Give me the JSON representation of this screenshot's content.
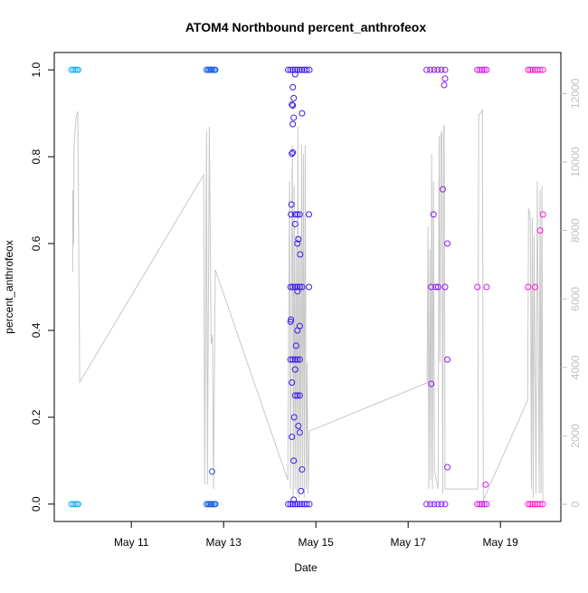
{
  "chart_data": {
    "type": "scatter",
    "title": "ATOM4 Northbound percent_anthrofeox",
    "xlabel": "Date",
    "ylabel": "percent_anthrofeox",
    "xlim": [
      9.33,
      20.31
    ],
    "xticks": [
      {
        "value": 11,
        "label": "May 11"
      },
      {
        "value": 13,
        "label": "May 13"
      },
      {
        "value": 15,
        "label": "May 15"
      },
      {
        "value": 17,
        "label": "May 17"
      },
      {
        "value": 19,
        "label": "May 19"
      }
    ],
    "ylim": [
      -0.04,
      1.04
    ],
    "yticks": [
      {
        "value": 0,
        "label": "0.0"
      },
      0.2,
      0.4,
      0.6,
      0.8,
      {
        "value": 1,
        "label": "1.0"
      }
    ],
    "y2lim": [
      -500,
      13200
    ],
    "y2ticks": [
      0,
      2000,
      4000,
      6000,
      8000,
      10000,
      12000
    ],
    "y2color": "#c0c0c0",
    "series": [
      {
        "color": "#1eb4f0",
        "x": [
          9.7,
          9.74,
          9.78,
          9.82,
          9.85,
          9.7,
          9.74,
          9.78,
          9.82,
          9.85
        ],
        "values": [
          1,
          1,
          1,
          1,
          1,
          0,
          0,
          0,
          0,
          0
        ]
      },
      {
        "color": "#1a5fe0",
        "x": [
          12.63,
          12.67,
          12.7,
          12.73,
          12.76,
          12.8,
          12.82,
          12.63,
          12.67,
          12.7,
          12.73,
          12.76,
          12.8,
          12.82,
          12.75
        ],
        "values": [
          1,
          1,
          1,
          1,
          1,
          1,
          1,
          0,
          0,
          0,
          0,
          0,
          0,
          0,
          0.075
        ]
      },
      {
        "color": "#3b1cf0",
        "x": [
          14.4,
          14.45,
          14.5,
          14.55,
          14.6,
          14.65,
          14.7,
          14.75,
          14.8,
          14.86,
          14.4,
          14.45,
          14.5,
          14.55,
          14.6,
          14.65,
          14.7,
          14.75,
          14.8,
          14.86,
          14.5,
          14.55,
          14.52,
          14.48,
          14.5,
          14.52,
          14.5,
          14.7,
          14.5,
          14.48,
          14.47,
          14.46,
          14.55,
          14.6,
          14.65,
          14.85,
          14.55,
          14.62,
          14.6,
          14.66,
          14.45,
          14.5,
          14.55,
          14.6,
          14.65,
          14.7,
          14.85,
          14.6,
          14.46,
          14.45,
          14.65,
          14.6,
          14.57,
          14.45,
          14.5,
          14.55,
          14.6,
          14.65,
          14.55,
          14.48,
          14.55,
          14.6,
          14.65,
          14.53,
          14.62,
          14.65,
          14.48,
          14.52,
          14.7,
          14.68,
          14.52
        ],
        "values": [
          1,
          1,
          1,
          1,
          1,
          1,
          1,
          1,
          1,
          1,
          0,
          0,
          0,
          0,
          0,
          0,
          0,
          0,
          0,
          0,
          0.96,
          0.99,
          0.935,
          0.92,
          0.918,
          0.89,
          0.875,
          0.9,
          0.81,
          0.807,
          0.69,
          0.667,
          0.667,
          0.667,
          0.667,
          0.667,
          0.645,
          0.61,
          0.6,
          0.575,
          0.5,
          0.5,
          0.5,
          0.5,
          0.5,
          0.5,
          0.5,
          0.49,
          0.425,
          0.42,
          0.41,
          0.4,
          0.365,
          0.333,
          0.333,
          0.333,
          0.333,
          0.333,
          0.31,
          0.28,
          0.25,
          0.25,
          0.25,
          0.2,
          0.18,
          0.165,
          0.155,
          0.1,
          0.08,
          0.03,
          0.01
        ]
      },
      {
        "color": "#8a1cf0",
        "x": [
          17.4,
          17.48,
          17.56,
          17.64,
          17.72,
          17.8,
          17.4,
          17.48,
          17.56,
          17.64,
          17.72,
          17.8,
          17.5,
          17.55,
          17.5,
          17.6,
          17.65,
          17.8,
          17.75,
          17.85,
          17.85,
          17.85,
          17.8,
          17.78
        ],
        "values": [
          1,
          1,
          1,
          1,
          1,
          1,
          0,
          0,
          0,
          0,
          0,
          0,
          0.277,
          0.667,
          0.5,
          0.5,
          0.5,
          0.5,
          0.725,
          0.6,
          0.333,
          0.085,
          0.98,
          0.965
        ]
      },
      {
        "color": "#d21cf0",
        "x": [
          18.5,
          18.55,
          18.6,
          18.65,
          18.7,
          18.5,
          18.55,
          18.6,
          18.65,
          18.7,
          18.5,
          18.7,
          18.68
        ],
        "values": [
          1,
          1,
          1,
          1,
          1,
          0,
          0,
          0,
          0,
          0,
          0.5,
          0.5,
          0.045
        ]
      },
      {
        "color": "#ff1acc",
        "x": [
          19.6,
          19.65,
          19.7,
          19.75,
          19.8,
          19.86,
          19.92,
          19.6,
          19.65,
          19.7,
          19.75,
          19.8,
          19.86,
          19.92,
          19.6,
          19.75,
          19.86,
          19.92
        ],
        "values": [
          1,
          1,
          1,
          1,
          1,
          1,
          1,
          0,
          0,
          0,
          0,
          0,
          0,
          0,
          0.5,
          0.5,
          0.63,
          0.667
        ]
      },
      {
        "type": "line",
        "axis": "y2",
        "color": "#c8c8c8",
        "x": [
          9.73,
          9.73,
          9.75,
          9.76,
          9.8,
          9.84,
          9.88,
          12.57,
          12.59,
          12.63,
          12.65,
          12.69,
          12.73,
          12.76,
          12.78,
          12.82,
          14.39,
          14.43,
          14.45,
          14.47,
          14.49,
          14.51,
          14.53,
          14.55,
          14.57,
          14.59,
          14.61,
          14.63,
          14.65,
          14.67,
          14.69,
          14.71,
          14.73,
          14.75,
          14.77,
          14.79,
          14.81,
          14.83,
          14.86,
          17.41,
          17.43,
          17.45,
          17.47,
          17.49,
          17.51,
          17.53,
          17.55,
          17.57,
          17.65,
          17.67,
          17.69,
          17.71,
          17.73,
          17.75,
          17.77,
          17.78,
          17.8,
          17.82,
          18.51,
          18.53,
          18.57,
          18.61,
          18.63,
          18.65,
          19.59,
          19.61,
          19.63,
          19.65,
          19.67,
          19.69,
          19.71,
          19.73,
          19.77,
          19.8,
          19.84,
          19.86,
          19.88,
          19.9,
          19.92
        ],
        "values": [
          6800,
          9180,
          7590,
          10500,
          11300,
          11480,
          3570,
          9630,
          580,
          10900,
          580,
          11030,
          4680,
          4950,
          450,
          6850,
          710,
          9450,
          450,
          5500,
          10500,
          190,
          9310,
          450,
          7860,
          320,
          11030,
          190,
          7860,
          450,
          10500,
          320,
          10240,
          190,
          10500,
          450,
          4150,
          320,
          2140,
          3550,
          8120,
          450,
          7460,
          710,
          10240,
          450,
          9450,
          980,
          450,
          10770,
          4150,
          10770,
          10900,
          320,
          11090,
          11030,
          450,
          450,
          450,
          11380,
          11430,
          11540,
          50,
          190,
          3040,
          8650,
          8520,
          8260,
          450,
          8390,
          190,
          7860,
          320,
          9450,
          320,
          9180,
          320,
          9310,
          50
        ]
      }
    ]
  }
}
